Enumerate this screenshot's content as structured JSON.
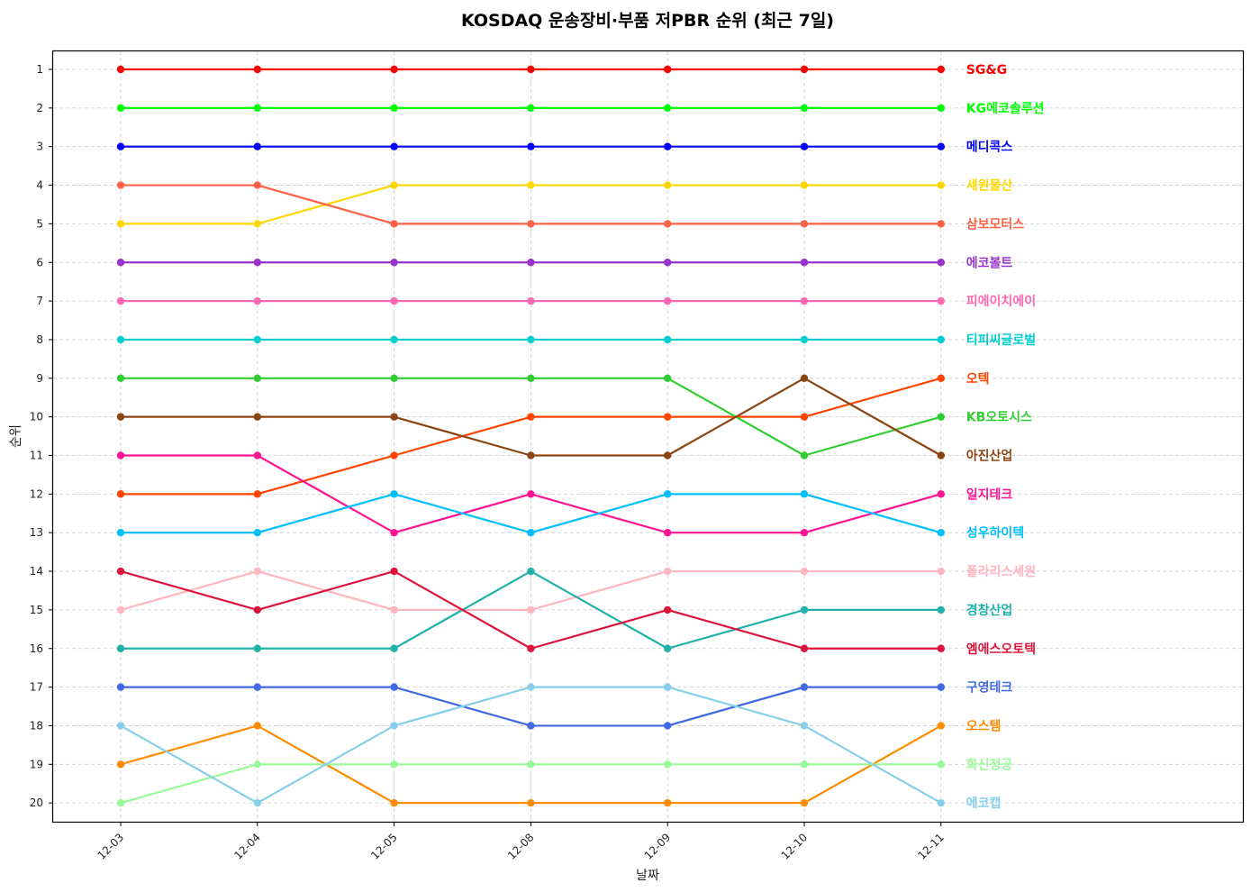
{
  "chart_data": {
    "type": "line",
    "title": "KOSDAQ 운송장비·부품 저PBR 순위 (최근 7일)",
    "xlabel": "날짜",
    "ylabel": "순위",
    "x": [
      "12-03",
      "12-04",
      "12-05",
      "12-08",
      "12-09",
      "12-10",
      "12-11"
    ],
    "yticks": [
      1,
      2,
      3,
      4,
      5,
      6,
      7,
      8,
      9,
      10,
      11,
      12,
      13,
      14,
      15,
      16,
      17,
      18,
      19,
      20
    ],
    "ylim": [
      20.5,
      0.5
    ],
    "y_inverted": true,
    "grid": true,
    "legend_position": "inline-right-end-labels",
    "series": [
      {
        "name": "SG&G",
        "color": "#ff0000",
        "values": [
          1,
          1,
          1,
          1,
          1,
          1,
          1
        ]
      },
      {
        "name": "KG에코솔루션",
        "color": "#00ff00",
        "values": [
          2,
          2,
          2,
          2,
          2,
          2,
          2
        ]
      },
      {
        "name": "메디콕스",
        "color": "#0000ff",
        "values": [
          3,
          3,
          3,
          3,
          3,
          3,
          3
        ]
      },
      {
        "name": "세원물산",
        "color": "#ffd700",
        "values": [
          5,
          5,
          4,
          4,
          4,
          4,
          4
        ]
      },
      {
        "name": "삼보모터스",
        "color": "#ff6347",
        "values": [
          4,
          4,
          5,
          5,
          5,
          5,
          5
        ]
      },
      {
        "name": "에코볼트",
        "color": "#9932cc",
        "values": [
          6,
          6,
          6,
          6,
          6,
          6,
          6
        ]
      },
      {
        "name": "피에이치에이",
        "color": "#ff69b4",
        "values": [
          7,
          7,
          7,
          7,
          7,
          7,
          7
        ]
      },
      {
        "name": "티피씨글로벌",
        "color": "#00ced1",
        "values": [
          8,
          8,
          8,
          8,
          8,
          8,
          8
        ]
      },
      {
        "name": "오텍",
        "color": "#ff4500",
        "values": [
          12,
          12,
          11,
          10,
          10,
          10,
          9
        ]
      },
      {
        "name": "KB오토시스",
        "color": "#32cd32",
        "values": [
          9,
          9,
          9,
          9,
          9,
          11,
          10
        ]
      },
      {
        "name": "아진산업",
        "color": "#8b4513",
        "values": [
          10,
          10,
          10,
          11,
          11,
          9,
          11
        ]
      },
      {
        "name": "일지테크",
        "color": "#ff1493",
        "values": [
          11,
          11,
          13,
          12,
          13,
          13,
          12
        ]
      },
      {
        "name": "성우하이텍",
        "color": "#00bfff",
        "values": [
          13,
          13,
          12,
          13,
          12,
          12,
          13
        ]
      },
      {
        "name": "폴라리스세원",
        "color": "#ffb6c1",
        "values": [
          15,
          14,
          15,
          15,
          14,
          14,
          14
        ]
      },
      {
        "name": "경창산업",
        "color": "#20b2aa",
        "values": [
          16,
          16,
          16,
          14,
          16,
          15,
          15
        ]
      },
      {
        "name": "엠에스오토텍",
        "color": "#dc143c",
        "values": [
          14,
          15,
          14,
          16,
          15,
          16,
          16
        ]
      },
      {
        "name": "구영테크",
        "color": "#4169e1",
        "values": [
          17,
          17,
          17,
          18,
          18,
          17,
          17
        ]
      },
      {
        "name": "오스템",
        "color": "#ff8c00",
        "values": [
          19,
          18,
          20,
          20,
          20,
          20,
          18
        ]
      },
      {
        "name": "화신정공",
        "color": "#98fb98",
        "values": [
          20,
          19,
          19,
          19,
          19,
          19,
          19
        ]
      },
      {
        "name": "에코캡",
        "color": "#87ceeb",
        "values": [
          18,
          20,
          18,
          17,
          17,
          18,
          20
        ]
      }
    ]
  }
}
